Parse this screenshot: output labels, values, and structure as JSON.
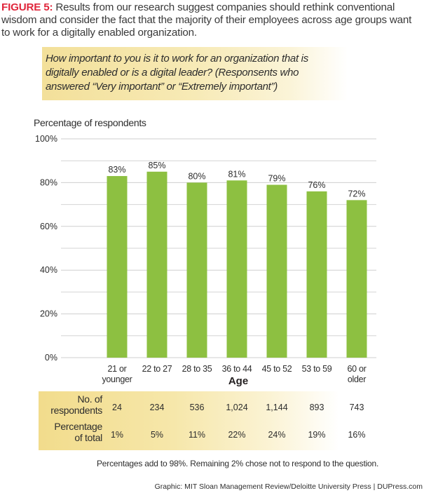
{
  "caption": {
    "figure_label": "FIGURE 5:",
    "text": " Results from our research suggest companies should rethink conventional wisdom and consider the fact that the majority of their employees across age groups want to work for a digitally enabled organization."
  },
  "question": "How important to you is it to work for an organization that is digitally enabled or is a digital leader? (Responsents who answered “Very important” or “Extremely important”)",
  "chart_data": {
    "type": "bar",
    "title": "How important to you is it to work for an organization that is digitally enabled or is a digital leader?",
    "ylabel": "Percentage of respondents",
    "xlabel": "Age",
    "categories": [
      "21 or younger",
      "22 to 27",
      "28 to 35",
      "36 to 44",
      "45 to 52",
      "53 to 59",
      "60 or older"
    ],
    "category_lines": [
      [
        "21 or",
        "younger"
      ],
      [
        "22 to 27"
      ],
      [
        "28 to 35"
      ],
      [
        "36 to 44"
      ],
      [
        "45 to 52"
      ],
      [
        "53 to 59"
      ],
      [
        "60 or",
        "older"
      ]
    ],
    "values": [
      83,
      85,
      80,
      81,
      79,
      76,
      72
    ],
    "data_labels": [
      "83%",
      "85%",
      "80%",
      "81%",
      "79%",
      "76%",
      "72%"
    ],
    "ylim": [
      0,
      100
    ],
    "yticks": [
      0,
      20,
      40,
      60,
      80,
      100
    ],
    "ytick_labels": [
      "0%",
      "20%",
      "40%",
      "60%",
      "80%",
      "100%"
    ],
    "minor_gridlines": [
      10,
      30,
      50,
      70,
      90
    ],
    "grid": true,
    "bar_color": "#8dc041",
    "legend": "none"
  },
  "table": {
    "rows": [
      {
        "label_lines": [
          "No. of",
          "respondents"
        ],
        "values": [
          "24",
          "234",
          "536",
          "1,024",
          "1,144",
          "893",
          "743"
        ]
      },
      {
        "label_lines": [
          "Percentage",
          "of total"
        ],
        "values": [
          "1%",
          "5%",
          "11%",
          "22%",
          "24%",
          "19%",
          "16%"
        ]
      }
    ]
  },
  "note": "Percentages add to 98%.  Remaining 2% chose not to respond to the question.",
  "credit": "Graphic: MIT Sloan Management Review/Deloitte University Press  |  DUPress.com"
}
